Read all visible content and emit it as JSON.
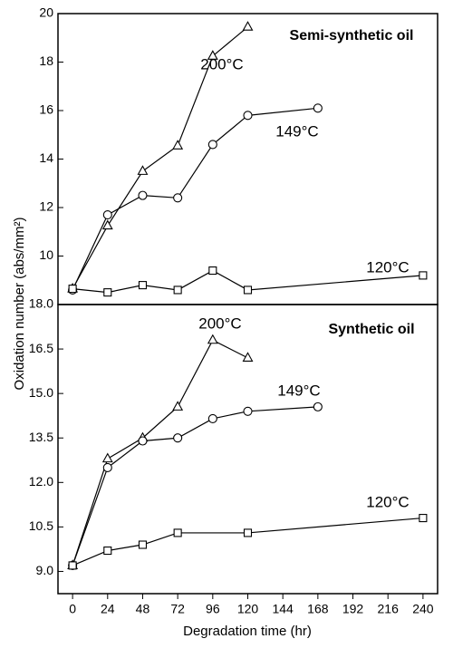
{
  "chart_data": [
    {
      "type": "line",
      "title": "Semi-synthetic oil",
      "ylabel": "Oxidation number (abs/mm²)",
      "xlim": [
        -10,
        250
      ],
      "ylim": [
        8,
        20
      ],
      "yticks": [
        10,
        12,
        14,
        16,
        18,
        20
      ],
      "series": [
        {
          "name": "200°C",
          "color": "#000000",
          "marker": "triangle",
          "x": [
            0,
            24,
            48,
            72,
            96,
            120
          ],
          "values": [
            8.65,
            11.25,
            13.5,
            14.55,
            18.25,
            19.45
          ]
        },
        {
          "name": "149°C",
          "color": "#000000",
          "marker": "circle",
          "x": [
            0,
            24,
            48,
            72,
            96,
            120,
            168
          ],
          "values": [
            8.6,
            11.7,
            12.5,
            12.4,
            14.6,
            15.8,
            16.1
          ]
        },
        {
          "name": "120°C",
          "color": "#000000",
          "marker": "square",
          "x": [
            0,
            24,
            48,
            72,
            96,
            120,
            240
          ],
          "values": [
            8.65,
            8.5,
            8.8,
            8.6,
            9.4,
            8.6,
            9.2
          ]
        }
      ]
    },
    {
      "type": "line",
      "title": "Synthetic oil",
      "xlabel": "Degradation time (hr)",
      "xlim": [
        -10,
        250
      ],
      "xticks": [
        0,
        24,
        48,
        72,
        96,
        120,
        144,
        168,
        192,
        216,
        240
      ],
      "ylim": [
        8.25,
        18
      ],
      "yticks": [
        {
          "value": 9,
          "label": "9.0"
        },
        {
          "value": 10.5,
          "label": "10.5"
        },
        {
          "value": 12,
          "label": "12.0"
        },
        {
          "value": 13.5,
          "label": "13.5"
        },
        {
          "value": 15,
          "label": "15.0"
        },
        {
          "value": 16.5,
          "label": "16.5"
        },
        {
          "value": 18,
          "label": "18.0"
        }
      ],
      "series": [
        {
          "name": "200°C",
          "color": "#000000",
          "marker": "triangle",
          "x": [
            0,
            24,
            48,
            72,
            96,
            120
          ],
          "values": [
            9.2,
            12.8,
            13.5,
            14.55,
            16.8,
            16.2
          ]
        },
        {
          "name": "149°C",
          "color": "#000000",
          "marker": "circle",
          "x": [
            0,
            24,
            48,
            72,
            96,
            120,
            168
          ],
          "values": [
            9.2,
            12.5,
            13.4,
            13.5,
            14.15,
            14.4,
            14.55
          ]
        },
        {
          "name": "120°C",
          "color": "#000000",
          "marker": "square",
          "x": [
            0,
            24,
            48,
            72,
            120,
            240
          ],
          "values": [
            9.2,
            9.7,
            9.9,
            10.3,
            10.3,
            10.8
          ]
        }
      ]
    }
  ]
}
